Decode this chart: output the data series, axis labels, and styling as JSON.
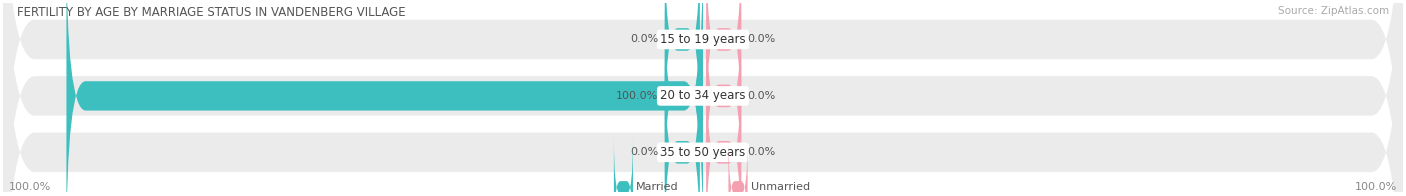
{
  "title": "FERTILITY BY AGE BY MARRIAGE STATUS IN VANDENBERG VILLAGE",
  "source": "Source: ZipAtlas.com",
  "categories": [
    "15 to 19 years",
    "20 to 34 years",
    "35 to 50 years"
  ],
  "married_values": [
    0.0,
    100.0,
    0.0
  ],
  "unmarried_values": [
    0.0,
    0.0,
    0.0
  ],
  "married_color": "#3dbfbf",
  "unmarried_color": "#f4a0b0",
  "bg_color": "#ebebeb",
  "title_fontsize": 8.5,
  "source_fontsize": 7.5,
  "tick_fontsize": 8,
  "bar_label_fontsize": 8,
  "category_fontsize": 8.5,
  "bar_height": 0.52,
  "bar_bg_height": 0.7,
  "xlim": [
    -110,
    110
  ],
  "ylim": [
    -0.7,
    2.65
  ]
}
